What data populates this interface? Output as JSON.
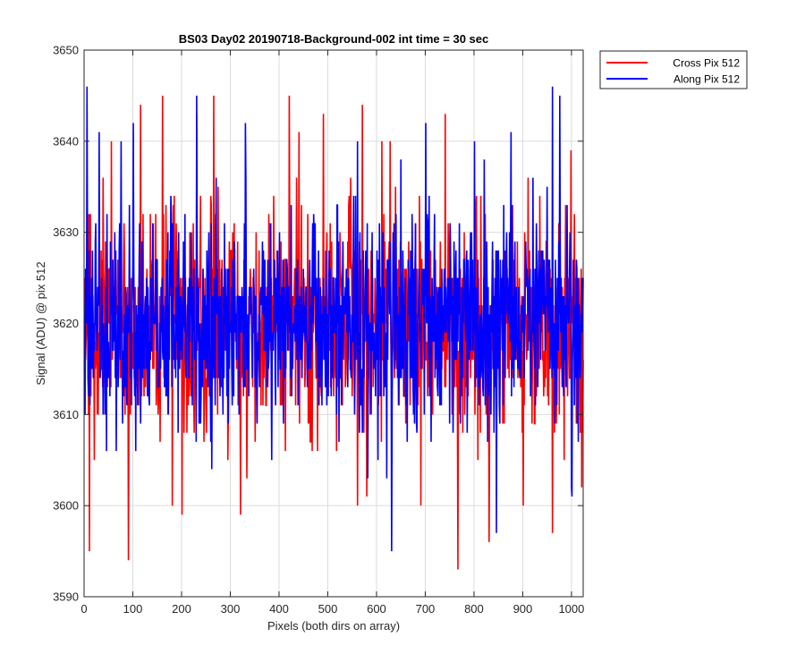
{
  "chart_data": {
    "type": "line",
    "title": "BS03 Day02 20190718-Background-002 int time = 30 sec",
    "xlabel": "Pixels (both dirs on array)",
    "ylabel": "Signal (ADU) @ pix 512",
    "xlim": [
      0,
      1024
    ],
    "ylim": [
      3590,
      3650
    ],
    "xticks": [
      0,
      100,
      200,
      300,
      400,
      500,
      600,
      700,
      800,
      900,
      1000
    ],
    "yticks": [
      3590,
      3600,
      3610,
      3620,
      3630,
      3640,
      3650
    ],
    "grid": true,
    "legend_position": "outside top-right",
    "series": [
      {
        "name": "Cross Pix 512",
        "color": "#ff0000",
        "n_points": 1024,
        "baseline": 3620,
        "spread_sd": 6,
        "extremes": [
          {
            "x": 10,
            "y": 3595
          },
          {
            "x": 55,
            "y": 3640
          },
          {
            "x": 90,
            "y": 3594
          },
          {
            "x": 115,
            "y": 3644
          },
          {
            "x": 160,
            "y": 3645
          },
          {
            "x": 180,
            "y": 3600
          },
          {
            "x": 200,
            "y": 3599
          },
          {
            "x": 230,
            "y": 3643
          },
          {
            "x": 265,
            "y": 3645
          },
          {
            "x": 320,
            "y": 3599
          },
          {
            "x": 420,
            "y": 3645
          },
          {
            "x": 440,
            "y": 3641
          },
          {
            "x": 490,
            "y": 3643
          },
          {
            "x": 560,
            "y": 3600
          },
          {
            "x": 570,
            "y": 3644
          },
          {
            "x": 610,
            "y": 3640
          },
          {
            "x": 690,
            "y": 3600
          },
          {
            "x": 740,
            "y": 3643
          },
          {
            "x": 766,
            "y": 3593
          },
          {
            "x": 830,
            "y": 3596
          },
          {
            "x": 900,
            "y": 3600
          },
          {
            "x": 960,
            "y": 3597
          },
          {
            "x": 1020,
            "y": 3602
          }
        ]
      },
      {
        "name": "Along Pix 512",
        "color": "#0000ff",
        "n_points": 1024,
        "baseline": 3620,
        "spread_sd": 6,
        "extremes": [
          {
            "x": 5,
            "y": 3646
          },
          {
            "x": 30,
            "y": 3641
          },
          {
            "x": 65,
            "y": 3606
          },
          {
            "x": 75,
            "y": 3640
          },
          {
            "x": 100,
            "y": 3642
          },
          {
            "x": 230,
            "y": 3645
          },
          {
            "x": 270,
            "y": 3636
          },
          {
            "x": 330,
            "y": 3642
          },
          {
            "x": 560,
            "y": 3640
          },
          {
            "x": 620,
            "y": 3603
          },
          {
            "x": 630,
            "y": 3595
          },
          {
            "x": 700,
            "y": 3642
          },
          {
            "x": 800,
            "y": 3640
          },
          {
            "x": 820,
            "y": 3638
          },
          {
            "x": 845,
            "y": 3597
          },
          {
            "x": 875,
            "y": 3641
          },
          {
            "x": 920,
            "y": 3636
          },
          {
            "x": 960,
            "y": 3646
          },
          {
            "x": 975,
            "y": 3645
          },
          {
            "x": 1000,
            "y": 3601
          }
        ]
      }
    ]
  }
}
